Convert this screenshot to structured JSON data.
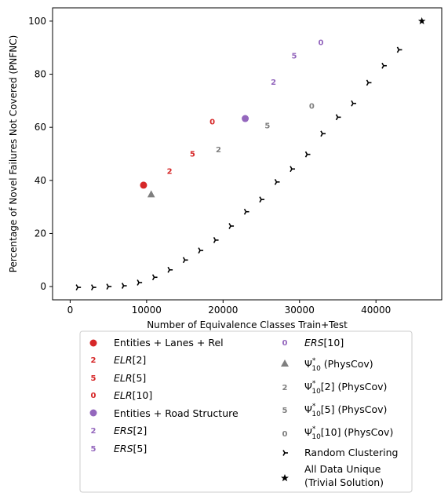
{
  "chart_data": {
    "type": "scatter",
    "xlabel": "Number of Equivalence Classes Train+Test",
    "ylabel": "Percentage of Novel Failures Not Covered (PNFNC)",
    "xlim": [
      -2300,
      48600
    ],
    "ylim": [
      -5,
      105
    ],
    "xticks": [
      0,
      10000,
      20000,
      30000,
      40000
    ],
    "yticks": [
      0,
      20,
      40,
      60,
      80,
      100
    ],
    "grid": false,
    "legend_position": "below plot, two columns",
    "colors": {
      "red": "#d62728",
      "purple": "#9467bd",
      "gray": "#7f7f7f",
      "black": "#000000"
    },
    "series": [
      {
        "name": "Entities + Lanes + Rel",
        "marker": "circle",
        "color": "#d62728",
        "points": [
          [
            9600,
            38.2
          ]
        ]
      },
      {
        "name": "ELR[2]",
        "base": "ELR",
        "sub": "[2]",
        "italic": true,
        "marker": "digit-2",
        "color": "#d62728",
        "points": [
          [
            13000,
            43.5
          ]
        ]
      },
      {
        "name": "ELR[5]",
        "base": "ELR",
        "sub": "[5]",
        "italic": true,
        "marker": "digit-5",
        "color": "#d62728",
        "points": [
          [
            16000,
            50.0
          ]
        ]
      },
      {
        "name": "ELR[10]",
        "base": "ELR",
        "sub": "[10]",
        "italic": true,
        "marker": "digit-0",
        "color": "#d62728",
        "points": [
          [
            18600,
            62.1
          ]
        ]
      },
      {
        "name": "Entities + Road Structure",
        "marker": "circle",
        "color": "#9467bd",
        "points": [
          [
            22900,
            63.3
          ]
        ]
      },
      {
        "name": "ERS[2]",
        "base": "ERS",
        "sub": "[2]",
        "italic": true,
        "marker": "digit-2",
        "color": "#9467bd",
        "points": [
          [
            26600,
            77.0
          ]
        ]
      },
      {
        "name": "ERS[5]",
        "base": "ERS",
        "sub": "[5]",
        "italic": true,
        "marker": "digit-5",
        "color": "#9467bd",
        "points": [
          [
            29300,
            87.0
          ]
        ]
      },
      {
        "name": "ERS[10]",
        "base": "ERS",
        "sub": "[10]",
        "italic": true,
        "marker": "digit-0",
        "color": "#9467bd",
        "points": [
          [
            32800,
            92.0
          ]
        ]
      },
      {
        "name": "Ψ*10 (PhysCov)",
        "marker": "triangle",
        "color": "#7f7f7f",
        "points": [
          [
            10600,
            34.8
          ]
        ]
      },
      {
        "name": "Ψ*10[2] (PhysCov)",
        "sub": "[2]",
        "marker": "digit-2",
        "color": "#7f7f7f",
        "points": [
          [
            19400,
            51.7
          ]
        ]
      },
      {
        "name": "Ψ*10[5] (PhysCov)",
        "sub": "[5]",
        "marker": "digit-5",
        "color": "#7f7f7f",
        "points": [
          [
            25800,
            60.6
          ]
        ]
      },
      {
        "name": "Ψ*10[10] (PhysCov)",
        "sub": "[10]",
        "marker": "digit-0",
        "color": "#7f7f7f",
        "points": [
          [
            31600,
            68.0
          ]
        ]
      },
      {
        "name": "Random Clustering",
        "marker": "tri-right",
        "color": "#000000",
        "points": [
          [
            1000,
            -0.3
          ],
          [
            3000,
            -0.3
          ],
          [
            5000,
            0.0
          ],
          [
            7000,
            0.3
          ],
          [
            9000,
            1.5
          ],
          [
            11000,
            3.5
          ],
          [
            13000,
            6.3
          ],
          [
            15000,
            10.0
          ],
          [
            17000,
            13.6
          ],
          [
            19000,
            17.5
          ],
          [
            21000,
            22.8
          ],
          [
            23000,
            28.2
          ],
          [
            25000,
            32.8
          ],
          [
            27000,
            39.4
          ],
          [
            29000,
            44.3
          ],
          [
            31000,
            49.8
          ],
          [
            33000,
            57.6
          ],
          [
            35000,
            63.8
          ],
          [
            37000,
            69.0
          ],
          [
            39000,
            76.8
          ],
          [
            41000,
            83.2
          ],
          [
            43000,
            89.2
          ]
        ]
      },
      {
        "name": "All Data Unique (Trivial Solution)",
        "marker": "star",
        "color": "#000000",
        "points": [
          [
            46000,
            100.0
          ]
        ]
      }
    ]
  },
  "legend": {
    "col1": [
      {
        "text": "Entities + Lanes + Rel"
      },
      {
        "base": "ELR",
        "sub": "[2]"
      },
      {
        "base": "ELR",
        "sub": "[5]"
      },
      {
        "base": "ELR",
        "sub": "[10]"
      },
      {
        "text": "Entities + Road Structure"
      },
      {
        "base": "ERS",
        "sub": "[2]"
      },
      {
        "base": "ERS",
        "sub": "[5]"
      }
    ],
    "col2": [
      {
        "base": "ERS",
        "sub": "[10]"
      },
      {
        "psi": "Ψ",
        "sup": "*",
        "low": "10",
        "rest": " (PhysCov)"
      },
      {
        "psi": "Ψ",
        "sup": "*",
        "low": "10",
        "rest": "[2] (PhysCov)"
      },
      {
        "psi": "Ψ",
        "sup": "*",
        "low": "10",
        "rest": "[5] (PhysCov)"
      },
      {
        "psi": "Ψ",
        "sup": "*",
        "low": "10",
        "rest": "[10] (PhysCov)"
      },
      {
        "text": "Random Clustering"
      },
      {
        "line1": "All Data Unique",
        "line2": "(Trivial Solution)"
      }
    ]
  }
}
